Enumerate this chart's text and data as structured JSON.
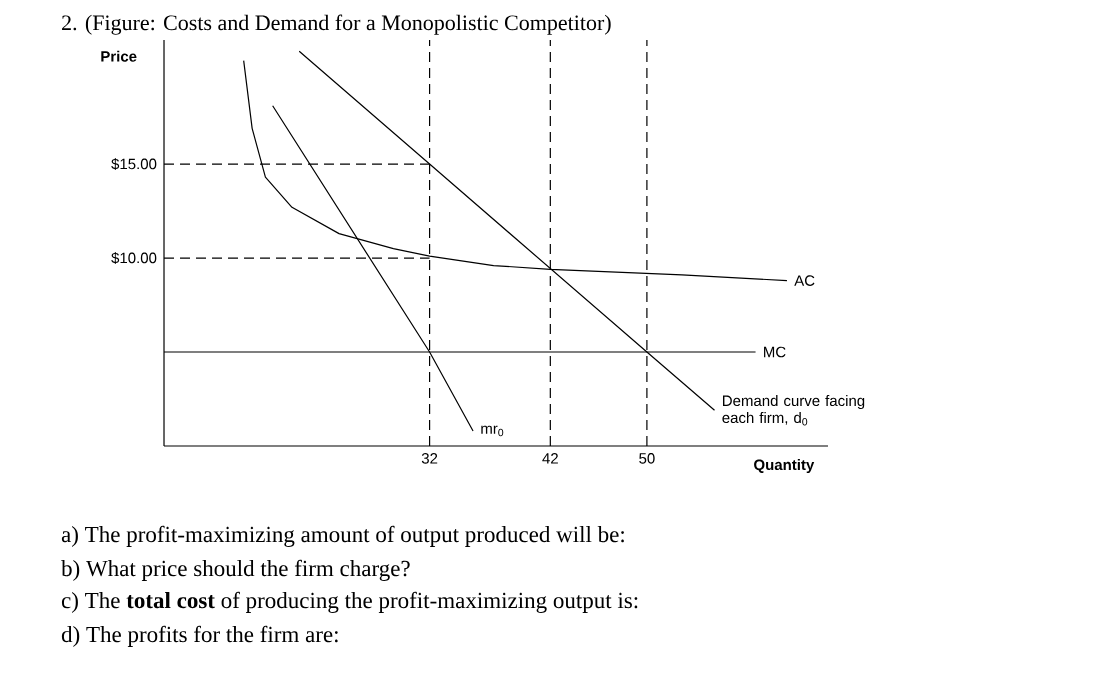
{
  "chart_data": {
    "type": "line",
    "title": "2. (Figure: Costs and Demand for a Monopolistic Competitor)",
    "xlabel": "Quantity",
    "ylabel": "Price",
    "xlim": [
      10,
      65
    ],
    "ylim": [
      0,
      21.6
    ],
    "xticks": [
      32,
      42,
      50
    ],
    "yticks": [
      {
        "value": 10,
        "label": "$10.00"
      },
      {
        "value": 15,
        "label": "$15.00"
      }
    ],
    "series": [
      {
        "name": "AC",
        "color": "#000000",
        "x": [
          16.6,
          17.3,
          18.4,
          20.6,
          24.5,
          29,
          32,
          37.3,
          42,
          52.9,
          61.6
        ],
        "values": [
          20.5,
          16.9,
          14.3,
          12.7,
          11.3,
          10.5,
          10.1,
          9.6,
          9.4,
          9.1,
          8.8
        ]
      },
      {
        "name": "MC",
        "color": "#000000",
        "x": [
          10,
          59
        ],
        "values": [
          5,
          5
        ]
      },
      {
        "name": "Demand curve facing each firm, d$_{0}$",
        "color": "#000000",
        "x": [
          21.2,
          32,
          50,
          55.6
        ],
        "values": [
          21,
          15,
          5,
          1.9
        ]
      },
      {
        "name": "mr$_{0}$",
        "color": "#000000",
        "x": [
          19,
          32,
          35.6
        ],
        "values": [
          18.1,
          5,
          0.8
        ]
      }
    ],
    "ref_lines": [
      {
        "axis": "y",
        "value": 15,
        "line_style": "dashed"
      },
      {
        "axis": "y",
        "value": 10,
        "line_style": "dashed"
      },
      {
        "axis": "x",
        "value": 32,
        "line_style": "dashed"
      },
      {
        "axis": "x",
        "value": 42,
        "line_style": "dashed"
      },
      {
        "axis": "x",
        "value": 50,
        "line_style": "dashed"
      }
    ],
    "annotations": [
      "a) The profit-maximizing amount of output produced will be:",
      "b) What price should the firm charge?",
      "c) The **total cost** of producing the profit-maximizing output is:",
      "d) The profits for the firm are:"
    ],
    "grid": false,
    "legend": false,
    "marker": "none",
    "line_style": "solid"
  }
}
